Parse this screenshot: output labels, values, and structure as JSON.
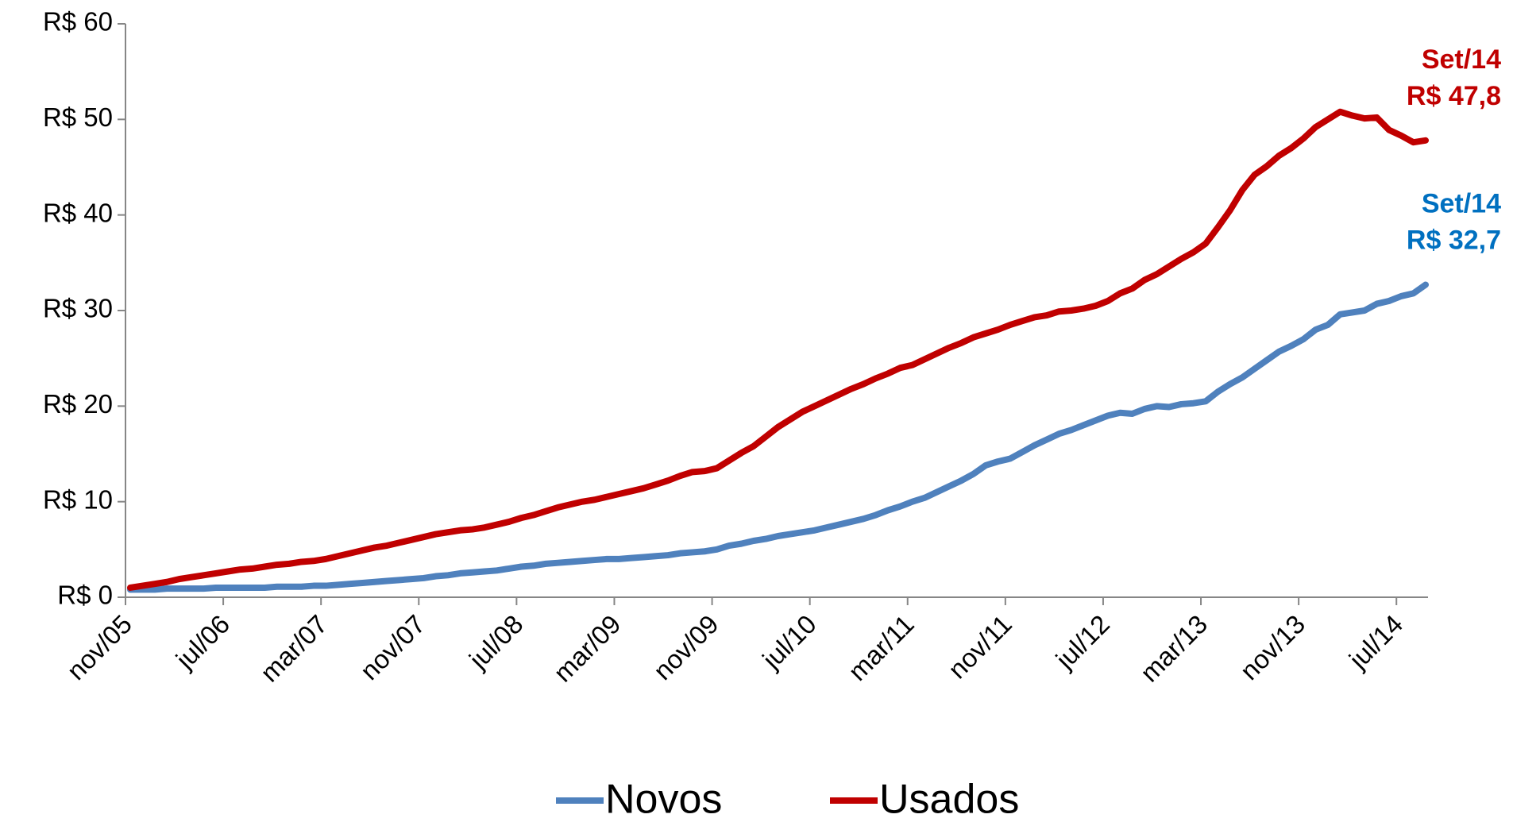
{
  "chart_data": {
    "type": "line",
    "categories": [
      "nov/05",
      null,
      null,
      null,
      null,
      null,
      null,
      null,
      "jul/06",
      null,
      null,
      null,
      null,
      null,
      null,
      null,
      "mar/07",
      null,
      null,
      null,
      null,
      null,
      null,
      null,
      "nov/07",
      null,
      null,
      null,
      null,
      null,
      null,
      null,
      "jul/08",
      null,
      null,
      null,
      null,
      null,
      null,
      null,
      "mar/09",
      null,
      null,
      null,
      null,
      null,
      null,
      null,
      "nov/09",
      null,
      null,
      null,
      null,
      null,
      null,
      null,
      "jul/10",
      null,
      null,
      null,
      null,
      null,
      null,
      null,
      "mar/11",
      null,
      null,
      null,
      null,
      null,
      null,
      null,
      "nov/11",
      null,
      null,
      null,
      null,
      null,
      null,
      null,
      "jul/12",
      null,
      null,
      null,
      null,
      null,
      null,
      null,
      "mar/13",
      null,
      null,
      null,
      null,
      null,
      null,
      null,
      "nov/13",
      null,
      null,
      null,
      null,
      null,
      null,
      null,
      "jul/14",
      null,
      null
    ],
    "series": [
      {
        "name": "Novos",
        "color": "#4f81bd",
        "values": [
          0.8,
          0.8,
          0.8,
          0.9,
          0.9,
          0.9,
          0.9,
          1.0,
          1.0,
          1.0,
          1.0,
          1.0,
          1.1,
          1.1,
          1.1,
          1.2,
          1.2,
          1.3,
          1.4,
          1.5,
          1.6,
          1.7,
          1.8,
          1.9,
          2.0,
          2.2,
          2.3,
          2.5,
          2.6,
          2.7,
          2.8,
          3.0,
          3.2,
          3.3,
          3.5,
          3.6,
          3.7,
          3.8,
          3.9,
          4.0,
          4.0,
          4.1,
          4.2,
          4.3,
          4.4,
          4.6,
          4.7,
          4.8,
          5.0,
          5.4,
          5.6,
          5.9,
          6.1,
          6.4,
          6.6,
          6.8,
          7.0,
          7.3,
          7.6,
          7.9,
          8.2,
          8.6,
          9.1,
          9.5,
          10.0,
          10.4,
          11.0,
          11.6,
          12.2,
          12.9,
          13.8,
          14.2,
          14.5,
          15.2,
          15.9,
          16.5,
          17.1,
          17.5,
          18.0,
          18.5,
          19.0,
          19.3,
          19.2,
          19.7,
          20.0,
          19.9,
          20.2,
          20.3,
          20.5,
          21.5,
          22.3,
          23.0,
          23.9,
          24.8,
          25.7,
          26.3,
          27.0,
          28.0,
          28.5,
          29.6,
          29.8,
          30.0,
          30.7,
          31.0,
          31.5,
          31.8,
          32.7
        ]
      },
      {
        "name": "Usados",
        "color": "#c00000",
        "values": [
          1.0,
          1.2,
          1.4,
          1.6,
          1.9,
          2.1,
          2.3,
          2.5,
          2.7,
          2.9,
          3.0,
          3.2,
          3.4,
          3.5,
          3.7,
          3.8,
          4.0,
          4.3,
          4.6,
          4.9,
          5.2,
          5.4,
          5.7,
          6.0,
          6.3,
          6.6,
          6.8,
          7.0,
          7.1,
          7.3,
          7.6,
          7.9,
          8.3,
          8.6,
          9.0,
          9.4,
          9.7,
          10.0,
          10.2,
          10.5,
          10.8,
          11.1,
          11.4,
          11.8,
          12.2,
          12.7,
          13.1,
          13.2,
          13.5,
          14.3,
          15.1,
          15.8,
          16.8,
          17.8,
          18.6,
          19.4,
          20.0,
          20.6,
          21.2,
          21.8,
          22.3,
          22.9,
          23.4,
          24.0,
          24.3,
          24.9,
          25.5,
          26.1,
          26.6,
          27.2,
          27.6,
          28.0,
          28.5,
          28.9,
          29.3,
          29.5,
          29.9,
          30.0,
          30.2,
          30.5,
          31.0,
          31.8,
          32.3,
          33.2,
          33.8,
          34.6,
          35.4,
          36.1,
          37.0,
          38.7,
          40.5,
          42.6,
          44.2,
          45.1,
          46.2,
          47.0,
          48.0,
          49.2,
          50.0,
          50.8,
          50.4,
          50.1,
          50.2,
          48.9,
          48.3,
          47.6,
          47.8
        ]
      }
    ],
    "annotations": [
      {
        "lines": [
          "Set/14",
          "R$ 32,7"
        ],
        "color": "#0070c0"
      },
      {
        "lines": [
          "Set/14",
          "R$ 47,8"
        ],
        "color": "#c00000"
      }
    ],
    "ylim": [
      0,
      60
    ],
    "yticks": [
      {
        "value": 0,
        "label": "R$ 0"
      },
      {
        "value": 10,
        "label": "R$ 10"
      },
      {
        "value": 20,
        "label": "R$ 20"
      },
      {
        "value": 30,
        "label": "R$ 30"
      },
      {
        "value": 40,
        "label": "R$ 40"
      },
      {
        "value": 50,
        "label": "R$ 50"
      },
      {
        "value": 60,
        "label": "R$ 60"
      }
    ],
    "legend": "bottom"
  }
}
